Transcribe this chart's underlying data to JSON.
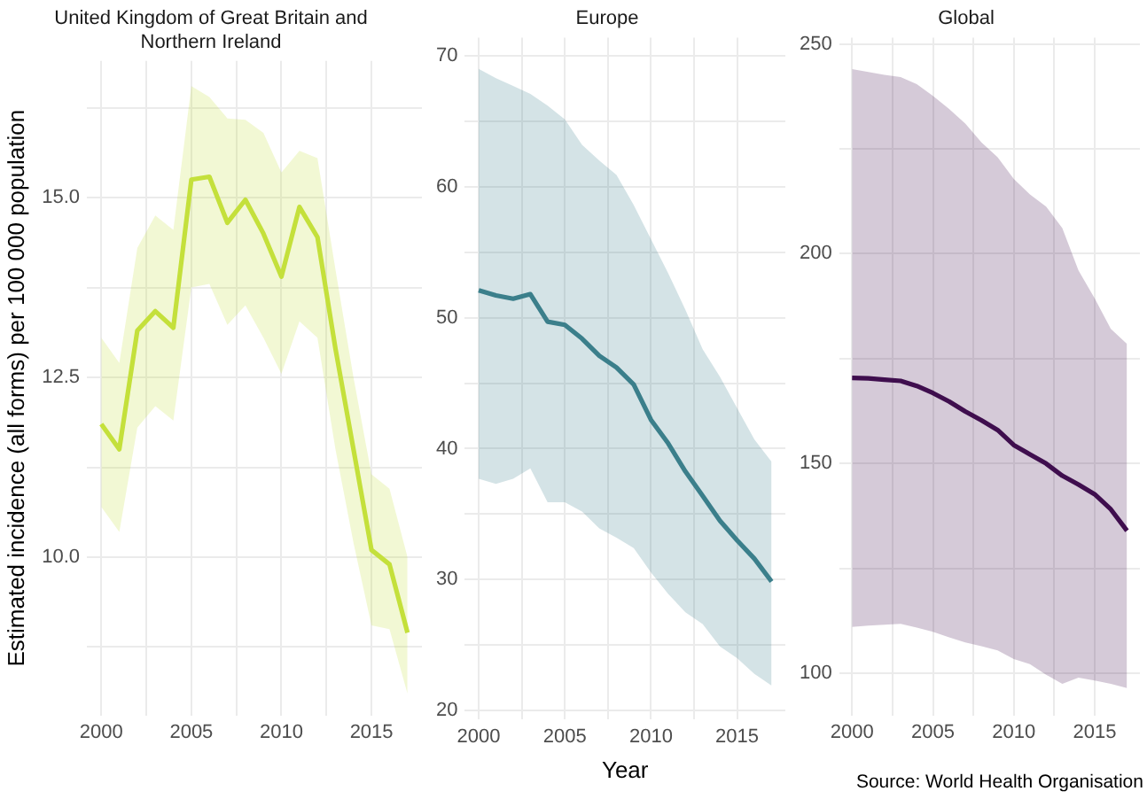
{
  "chart_data": [
    {
      "type": "line",
      "title": "United Kingdom of Great Britain and Northern Ireland",
      "ylabel": "Estimated incidence (all forms) per 100 000 population",
      "x": [
        2000,
        2001,
        2002,
        2003,
        2004,
        2005,
        2006,
        2007,
        2008,
        2009,
        2010,
        2011,
        2012,
        2013,
        2014,
        2015,
        2016,
        2017
      ],
      "series": [
        {
          "color": "#c5e03c",
          "values": [
            11.85,
            11.5,
            13.15,
            13.42,
            13.19,
            15.25,
            15.29,
            14.65,
            14.97,
            14.5,
            13.9,
            14.87,
            14.45,
            12.9,
            11.5,
            10.1,
            9.9,
            8.95
          ],
          "lower": [
            10.7,
            10.35,
            11.8,
            12.1,
            11.9,
            13.75,
            13.8,
            13.23,
            13.5,
            13.05,
            12.55,
            13.28,
            13.05,
            11.5,
            10.2,
            9.05,
            9.0,
            8.1
          ],
          "upper": [
            13.05,
            12.7,
            14.3,
            14.75,
            14.55,
            16.55,
            16.4,
            16.1,
            16.08,
            15.9,
            15.35,
            15.65,
            15.55,
            14.0,
            12.5,
            11.15,
            10.95,
            10.0
          ]
        }
      ],
      "xlim": [
        1999.2,
        2017.8
      ],
      "xticks": [
        2000,
        {
          "value": 2002.5,
          "label": null
        },
        2005,
        {
          "value": 2007.5,
          "label": null
        },
        2010,
        {
          "value": 2012.5,
          "label": null
        },
        2015
      ],
      "ylim": [
        7.8,
        16.9
      ],
      "yticks": [
        {
          "value": 8.75,
          "label": null
        },
        {
          "value": 10,
          "label": "10.0"
        },
        {
          "value": 11.25,
          "label": null
        },
        {
          "value": 12.5,
          "label": "12.5"
        },
        {
          "value": 13.75,
          "label": null
        },
        {
          "value": 15,
          "label": "15.0"
        },
        {
          "value": 16.25,
          "label": null
        }
      ],
      "grid": true,
      "legend": false
    },
    {
      "type": "line",
      "title": "Europe",
      "xlabel": "Year",
      "x": [
        2000,
        2001,
        2002,
        2003,
        2004,
        2005,
        2006,
        2007,
        2008,
        2009,
        2010,
        2011,
        2012,
        2013,
        2014,
        2015,
        2016,
        2017
      ],
      "series": [
        {
          "color": "#3c7f8b",
          "values": [
            52.1,
            51.7,
            51.45,
            51.8,
            49.7,
            49.45,
            48.4,
            47.1,
            46.2,
            44.9,
            42.2,
            40.4,
            38.25,
            36.4,
            34.5,
            33.0,
            31.6,
            29.85
          ],
          "lower": [
            37.7,
            37.3,
            37.7,
            38.5,
            35.9,
            35.9,
            35.2,
            33.9,
            33.2,
            32.4,
            30.55,
            28.9,
            27.5,
            26.6,
            24.9,
            24.0,
            22.8,
            21.9
          ],
          "upper": [
            69.0,
            68.3,
            67.7,
            67.1,
            66.2,
            65.15,
            63.2,
            62.0,
            60.9,
            58.6,
            56.0,
            53.4,
            50.6,
            47.6,
            45.5,
            43.1,
            40.7,
            39.0
          ]
        }
      ],
      "xlim": [
        1999.2,
        2017.8
      ],
      "xticks": [
        2000,
        {
          "value": 2002.5,
          "label": null
        },
        2005,
        {
          "value": 2007.5,
          "label": null
        },
        2010,
        {
          "value": 2012.5,
          "label": null
        },
        2015
      ],
      "ylim": [
        19.3,
        71.4
      ],
      "yticks": [
        20,
        {
          "value": 25,
          "label": null
        },
        30,
        {
          "value": 35,
          "label": null
        },
        40,
        {
          "value": 45,
          "label": null
        },
        50,
        {
          "value": 55,
          "label": null
        },
        60,
        {
          "value": 65,
          "label": null
        },
        70
      ],
      "grid": true,
      "legend": false
    },
    {
      "type": "line",
      "title": "Global",
      "annotations": [
        "Source: World Health Organisation"
      ],
      "x": [
        2000,
        2001,
        2002,
        2003,
        2004,
        2005,
        2006,
        2007,
        2008,
        2009,
        2010,
        2011,
        2012,
        2013,
        2014,
        2015,
        2016,
        2017
      ],
      "series": [
        {
          "color": "#3f0f4f",
          "values": [
            170.4,
            170.3,
            170,
            169.7,
            168.5,
            166.8,
            164.8,
            162.4,
            160.3,
            158.0,
            154.4,
            152.2,
            150,
            147.1,
            145,
            142.7,
            139.1,
            134.0
          ],
          "lower": [
            111.1,
            111.4,
            111.6,
            111.8,
            110.9,
            109.9,
            108.6,
            107.4,
            106.5,
            105.5,
            103.4,
            102.2,
            99.7,
            97.5,
            99,
            98.3,
            97.5,
            96.5
          ],
          "upper": [
            244.0,
            243.3,
            242.6,
            242.1,
            240.4,
            237.6,
            234.5,
            231,
            226.5,
            223,
            217.8,
            214.1,
            211.2,
            206.1,
            196,
            189.4,
            182.1,
            178.5
          ]
        }
      ],
      "xlim": [
        1999.2,
        2017.8
      ],
      "xticks": [
        2000,
        {
          "value": 2002.5,
          "label": null
        },
        2005,
        {
          "value": 2007.5,
          "label": null
        },
        2010,
        {
          "value": 2012.5,
          "label": null
        },
        2015
      ],
      "ylim": [
        90,
        251.5
      ],
      "yticks": [
        100,
        {
          "value": 125,
          "label": null
        },
        150,
        {
          "value": 175,
          "label": null
        },
        200,
        {
          "value": 225,
          "label": null
        },
        250
      ],
      "grid": true,
      "legend": false
    }
  ]
}
